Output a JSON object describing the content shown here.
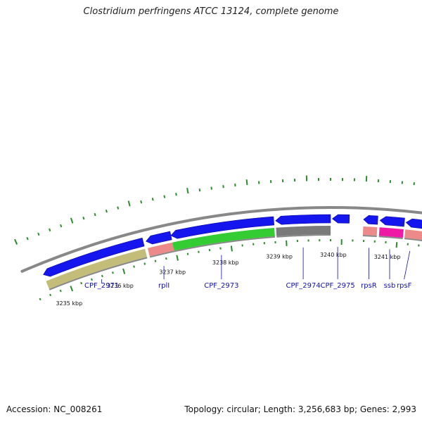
{
  "title": "Clostridium perfringens ATCC 13124, complete genome",
  "footer": {
    "accession": "Accession: NC_008261",
    "summary": "Topology: circular; Length: 3,256,683 bp; Genes: 2,993"
  },
  "colors": {
    "cds_arrow": "#1515ee",
    "cds_gold": "#c4bd79",
    "cds_green": "#33cc33",
    "cds_gray": "#7a7a7a",
    "rna_pink": "#ec8a8a",
    "rna_magenta": "#ee1aa6",
    "tick": "#2e8b2e",
    "backbone": "#888888",
    "label_line": "#1010b0"
  },
  "axis": {
    "unit": "kbp",
    "ticks": [
      {
        "label": "3235 kbp",
        "kbp": 3235
      },
      {
        "label": "3236 kbp",
        "kbp": 3236
      },
      {
        "label": "3237 kbp",
        "kbp": 3237
      },
      {
        "label": "3238 kbp",
        "kbp": 3238
      },
      {
        "label": "3239 kbp",
        "kbp": 3239
      },
      {
        "label": "3240 kbp",
        "kbp": 3240
      },
      {
        "label": "3241 kbp",
        "kbp": 3241
      }
    ]
  },
  "genes": [
    {
      "name": "CPF_2971",
      "start": 3234.82,
      "end": 3236.67,
      "arrow_color": "#1515ee",
      "feature_color": "#c4bd79",
      "label_kbp": 3235.75
    },
    {
      "name": "rplI",
      "start": 3236.72,
      "end": 3237.17,
      "arrow_color": "#1515ee",
      "feature_color": "#ec8a8a",
      "label_kbp": 3236.93
    },
    {
      "name": "CPF_2973",
      "start": 3237.17,
      "end": 3239.0,
      "arrow_color": "#1515ee",
      "feature_color": "#33cc33",
      "label_kbp": 3238.0
    },
    {
      "name": "CPF_2974",
      "start": 3239.03,
      "end": 3240.0,
      "arrow_color": "#1515ee",
      "feature_color": "#7a7a7a",
      "label_kbp": 3239.5
    },
    {
      "name": "CPF_2975",
      "start": 3240.03,
      "end": 3240.33,
      "arrow_color": "#1515ee",
      "feature_color": null,
      "label_kbp": 3240.13
    },
    {
      "name": "rpsR",
      "start": 3240.58,
      "end": 3240.83,
      "arrow_color": "#1515ee",
      "feature_color": "#ec8a8a",
      "label_kbp": 3240.7
    },
    {
      "name": "ssb",
      "start": 3240.87,
      "end": 3241.3,
      "arrow_color": "#1515ee",
      "feature_color": "#ee1aa6",
      "label_kbp": 3241.08
    },
    {
      "name": "rpsF",
      "start": 3241.33,
      "end": 3241.7,
      "arrow_color": "#1515ee",
      "feature_color": "#ec8a8a",
      "label_kbp": 3241.45
    }
  ]
}
